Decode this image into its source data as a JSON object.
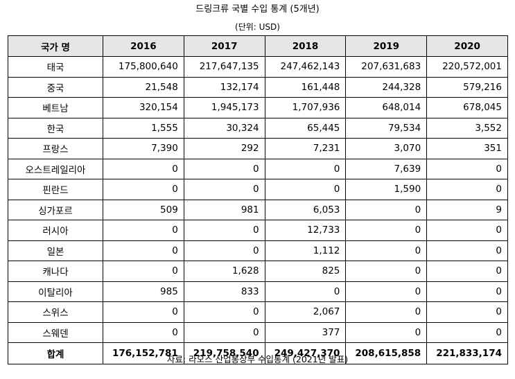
{
  "title": "드링크류 국별 수입 통계 (5개년)",
  "unit": "(단위: USD)",
  "table": {
    "headers": [
      "국가 명",
      "2016",
      "2017",
      "2018",
      "2019",
      "2020"
    ],
    "rows": [
      {
        "country": "태국",
        "values": [
          "175,800,640",
          "217,647,135",
          "247,462,143",
          "207,631,683",
          "220,572,001"
        ]
      },
      {
        "country": "중국",
        "values": [
          "21,548",
          "132,174",
          "161,448",
          "244,328",
          "579,216"
        ]
      },
      {
        "country": "베트남",
        "values": [
          "320,154",
          "1,945,173",
          "1,707,936",
          "648,014",
          "678,045"
        ]
      },
      {
        "country": "한국",
        "values": [
          "1,555",
          "30,324",
          "65,445",
          "79,534",
          "3,552"
        ]
      },
      {
        "country": "프랑스",
        "values": [
          "7,390",
          "292",
          "7,231",
          "3,070",
          "351"
        ]
      },
      {
        "country": "오스트레일리아",
        "values": [
          "0",
          "0",
          "0",
          "7,639",
          "0"
        ]
      },
      {
        "country": "핀란드",
        "values": [
          "0",
          "0",
          "0",
          "1,590",
          "0"
        ]
      },
      {
        "country": "싱가포르",
        "values": [
          "509",
          "981",
          "6,053",
          "0",
          "9"
        ]
      },
      {
        "country": "러시아",
        "values": [
          "0",
          "0",
          "12,733",
          "0",
          "0"
        ]
      },
      {
        "country": "일본",
        "values": [
          "0",
          "0",
          "1,112",
          "0",
          "0"
        ]
      },
      {
        "country": "캐나다",
        "values": [
          "0",
          "1,628",
          "825",
          "0",
          "0"
        ]
      },
      {
        "country": "이탈리아",
        "values": [
          "985",
          "833",
          "0",
          "0",
          "0"
        ]
      },
      {
        "country": "스위스",
        "values": [
          "0",
          "0",
          "2,067",
          "0",
          "0"
        ]
      },
      {
        "country": "스웨덴",
        "values": [
          "0",
          "0",
          "377",
          "0",
          "0"
        ]
      }
    ],
    "total": {
      "label": "합계",
      "values": [
        "176,152,781",
        "219,758,540",
        "249,427,370",
        "208,615,858",
        "221,833,174"
      ]
    }
  },
  "source": "자료: 라오스 산업통상부 수입통계 (2021년 발표)",
  "colors": {
    "header_background": "#e7e6e6",
    "border": "#000000",
    "text": "#000000"
  }
}
